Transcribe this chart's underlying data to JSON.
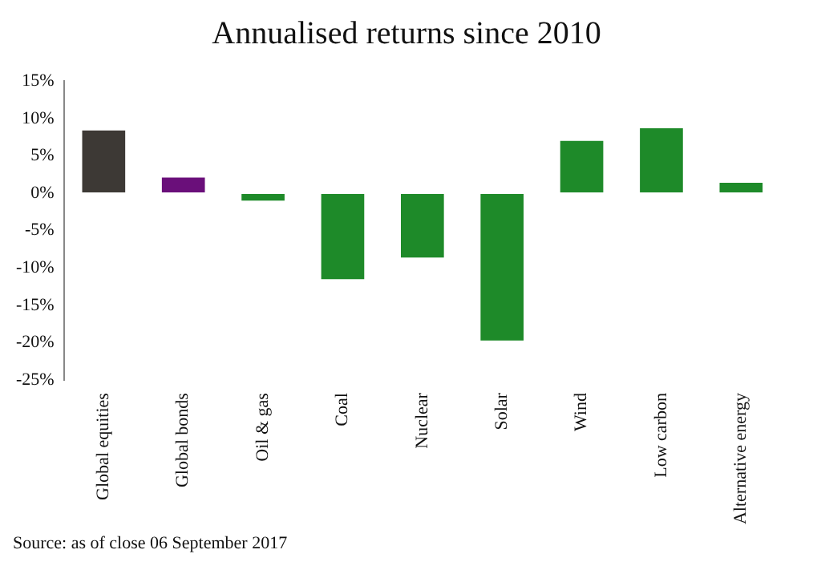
{
  "chart_data": {
    "type": "bar",
    "title": "Annualised returns since 2010",
    "categories": [
      "Global equities",
      "Global bonds",
      "Oil & gas",
      "Coal",
      "Nuclear",
      "Solar",
      "Wind",
      "Low carbon",
      "Alternative energy"
    ],
    "values": [
      8.4,
      2.1,
      -1.0,
      -11.5,
      -8.6,
      -19.7,
      7.0,
      8.7,
      1.4
    ],
    "colors": [
      "#3d3935",
      "#6a0f7a",
      "#1e8a29",
      "#1e8a29",
      "#1e8a29",
      "#1e8a29",
      "#1e8a29",
      "#1e8a29",
      "#1e8a29"
    ],
    "ylim": [
      -25,
      15
    ],
    "yticks": [
      {
        "value": -25,
        "label": "-25%"
      },
      {
        "value": -20,
        "label": "-20%"
      },
      {
        "value": -15,
        "label": "-15%"
      },
      {
        "value": -10,
        "label": "-10%"
      },
      {
        "value": -5,
        "label": "-5%"
      },
      {
        "value": 0,
        "label": "0%"
      },
      {
        "value": 5,
        "label": "5%"
      },
      {
        "value": 10,
        "label": "10%"
      },
      {
        "value": 15,
        "label": "15%"
      }
    ],
    "grid": false,
    "legend": false,
    "annotations": [
      "Source: as of close 06 September 2017"
    ]
  }
}
